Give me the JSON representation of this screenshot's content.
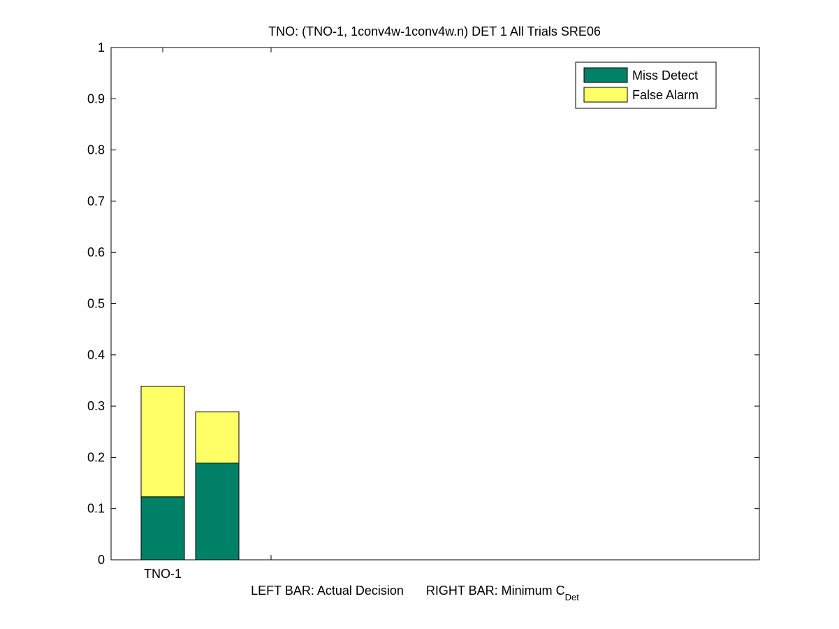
{
  "chart_data": {
    "type": "bar",
    "stacked": true,
    "title": "TNO: (TNO-1, 1conv4w-1conv4w.n) DET 1 All Trials SRE06",
    "categories": [
      "TNO-1"
    ],
    "bars": [
      {
        "group": "TNO-1",
        "position": "left",
        "decision": "Actual Decision",
        "miss_detect": 0.123,
        "false_alarm": 0.216
      },
      {
        "group": "TNO-1",
        "position": "right",
        "decision": "Minimum C_Det",
        "miss_detect": 0.189,
        "false_alarm": 0.1
      }
    ],
    "series": [
      {
        "name": "Miss Detect",
        "color": "#008066"
      },
      {
        "name": "False Alarm",
        "color": "#ffff66"
      }
    ],
    "ylim": [
      0,
      1
    ],
    "yticks": [
      "0",
      "0.1",
      "0.2",
      "0.3",
      "0.4",
      "0.5",
      "0.6",
      "0.7",
      "0.8",
      "0.9",
      "1"
    ],
    "xlabel": {
      "left": "LEFT BAR: Actual Decision",
      "right_main": "RIGHT BAR: Minimum C",
      "right_sub": "Det"
    },
    "legend_position": "top-right",
    "grid": false
  }
}
